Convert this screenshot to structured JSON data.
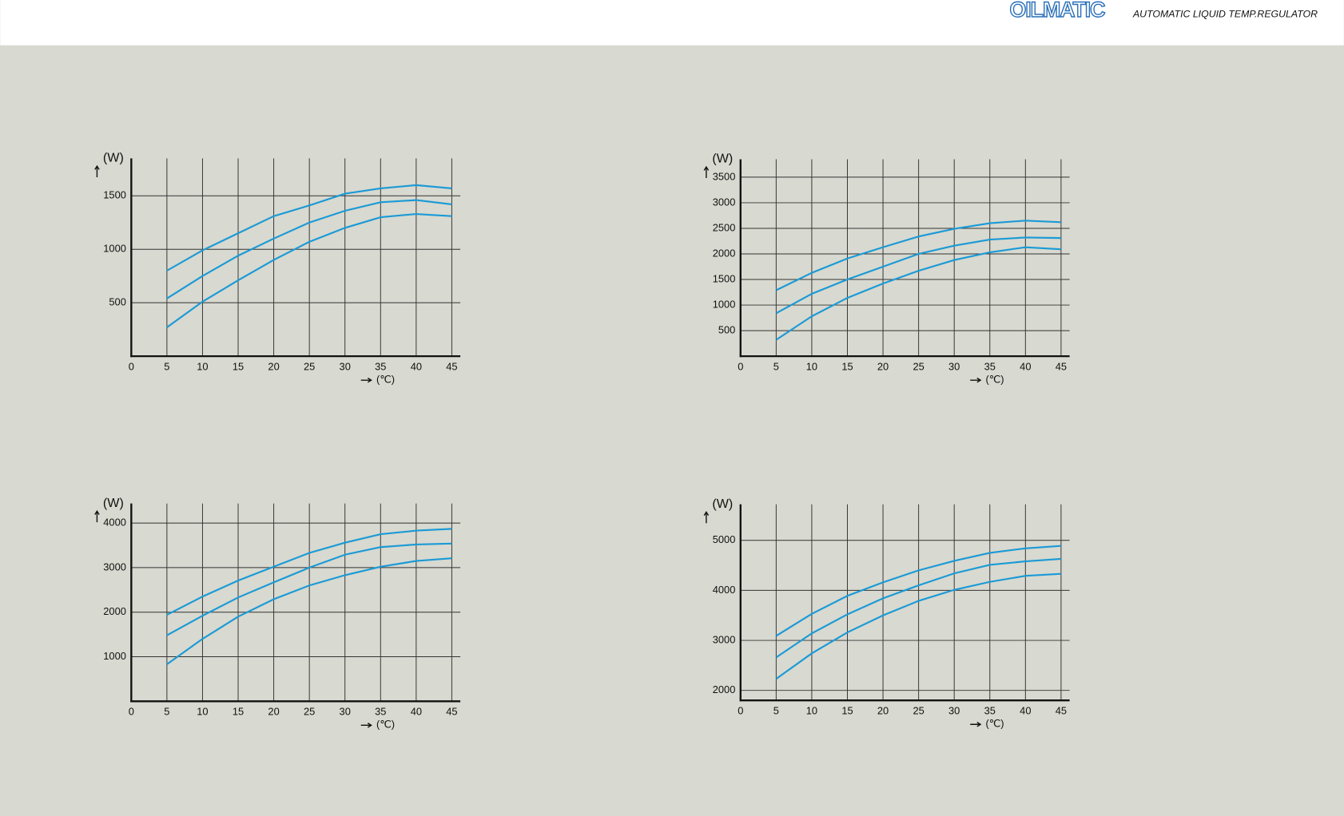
{
  "header": {
    "logo": "OILMATIC",
    "tagline": "AUTOMATIC LIQUID TEMP.REGULATOR"
  },
  "chart_data": [
    {
      "type": "line",
      "y_label": "(W)",
      "x_label": "(℃)",
      "grid": true,
      "x": [
        5,
        10,
        15,
        20,
        25,
        30,
        35,
        40,
        45
      ],
      "xlim": [
        0,
        46.2
      ],
      "xticks": [
        0,
        5,
        10,
        15,
        20,
        25,
        30,
        35,
        40,
        45
      ],
      "ylim": [
        0,
        1850
      ],
      "yticks": [
        500,
        1000,
        1500
      ],
      "series": [
        {
          "color": "#1a9ad6",
          "values": [
            800,
            990,
            1150,
            1310,
            1410,
            1520,
            1570,
            1600,
            1570
          ]
        },
        {
          "color": "#1a9ad6",
          "values": [
            540,
            750,
            940,
            1100,
            1250,
            1360,
            1440,
            1460,
            1420
          ]
        },
        {
          "color": "#1a9ad6",
          "values": [
            270,
            510,
            710,
            900,
            1070,
            1200,
            1300,
            1330,
            1310
          ]
        }
      ]
    },
    {
      "type": "line",
      "y_label": "(W)",
      "x_label": "(℃)",
      "grid": true,
      "x": [
        5,
        10,
        15,
        20,
        25,
        30,
        35,
        40,
        45
      ],
      "xlim": [
        0,
        46.2
      ],
      "xticks": [
        0,
        5,
        10,
        15,
        20,
        25,
        30,
        35,
        40,
        45
      ],
      "ylim": [
        0,
        3850
      ],
      "yticks": [
        500,
        1000,
        1500,
        2000,
        2500,
        3000,
        3500
      ],
      "series": [
        {
          "color": "#1a9ad6",
          "values": [
            1290,
            1630,
            1910,
            2130,
            2340,
            2490,
            2600,
            2650,
            2620
          ]
        },
        {
          "color": "#1a9ad6",
          "values": [
            840,
            1220,
            1500,
            1750,
            2000,
            2160,
            2280,
            2320,
            2310
          ]
        },
        {
          "color": "#1a9ad6",
          "values": [
            320,
            780,
            1140,
            1420,
            1670,
            1880,
            2030,
            2130,
            2090
          ]
        }
      ]
    },
    {
      "type": "line",
      "y_label": "(W)",
      "x_label": "(℃)",
      "grid": true,
      "x": [
        5,
        10,
        15,
        20,
        25,
        30,
        35,
        40,
        45
      ],
      "xlim": [
        0,
        46.2
      ],
      "xticks": [
        0,
        5,
        10,
        15,
        20,
        25,
        30,
        35,
        40,
        45
      ],
      "ylim": [
        0,
        4440
      ],
      "yticks": [
        1000,
        2000,
        3000,
        4000
      ],
      "series": [
        {
          "color": "#1a9ad6",
          "values": [
            1940,
            2350,
            2710,
            3020,
            3330,
            3560,
            3750,
            3830,
            3870
          ]
        },
        {
          "color": "#1a9ad6",
          "values": [
            1480,
            1920,
            2330,
            2670,
            3000,
            3290,
            3460,
            3520,
            3540
          ]
        },
        {
          "color": "#1a9ad6",
          "values": [
            830,
            1400,
            1900,
            2290,
            2600,
            2830,
            3020,
            3150,
            3210
          ]
        }
      ]
    },
    {
      "type": "line",
      "y_label": "(W)",
      "x_label": "(℃)",
      "grid": true,
      "x": [
        5,
        10,
        15,
        20,
        25,
        30,
        35,
        40,
        45
      ],
      "xlim": [
        0,
        46.2
      ],
      "xticks": [
        0,
        5,
        10,
        15,
        20,
        25,
        30,
        35,
        40,
        45
      ],
      "ylim": [
        1800,
        5720
      ],
      "yticks": [
        2000,
        3000,
        4000,
        5000
      ],
      "series": [
        {
          "color": "#1a9ad6",
          "values": [
            3090,
            3530,
            3890,
            4160,
            4400,
            4590,
            4750,
            4840,
            4890
          ]
        },
        {
          "color": "#1a9ad6",
          "values": [
            2660,
            3140,
            3520,
            3840,
            4100,
            4340,
            4510,
            4580,
            4630
          ]
        },
        {
          "color": "#1a9ad6",
          "values": [
            2230,
            2740,
            3160,
            3500,
            3790,
            4010,
            4170,
            4290,
            4330
          ]
        }
      ]
    }
  ]
}
